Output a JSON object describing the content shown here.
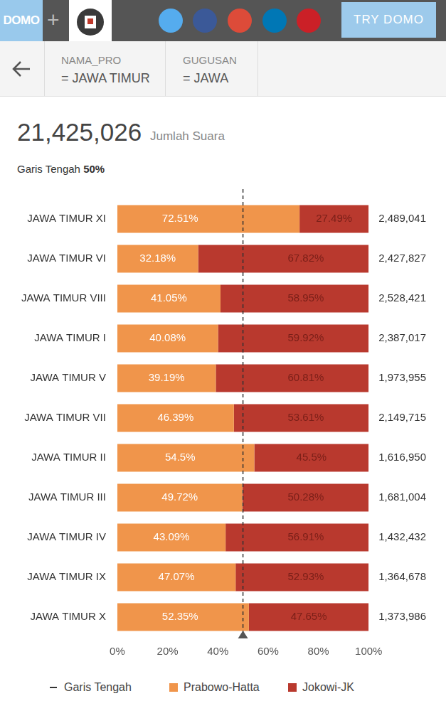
{
  "header": {
    "brand": "DOMO",
    "plus": "+",
    "button": "TRY DOMO"
  },
  "filters": [
    {
      "name": "NAMA_PRO",
      "value": "= JAWA TIMUR"
    },
    {
      "name": "GUGUSAN",
      "value": "= JAWA"
    }
  ],
  "total": {
    "value": 21425026,
    "label": "21,425,026",
    "caption": "Jumlah Suara"
  },
  "chart_data": {
    "type": "bar",
    "orientation": "horizontal",
    "stacked": true,
    "data_labels": true,
    "grid": false,
    "legend": "bottom",
    "categories": [
      "JAWA TIMUR XI",
      "JAWA TIMUR VI",
      "JAWA TIMUR VIII",
      "JAWA TIMUR I",
      "JAWA TIMUR V",
      "JAWA TIMUR VII",
      "JAWA TIMUR II",
      "JAWA TIMUR III",
      "JAWA TIMUR IV",
      "JAWA TIMUR IX",
      "JAWA TIMUR X"
    ],
    "series": [
      {
        "name": "Prabowo-Hatta",
        "color": "#f0954b",
        "values": [
          72.51,
          32.18,
          41.05,
          40.08,
          39.19,
          46.39,
          54.5,
          49.72,
          43.09,
          47.07,
          52.35
        ],
        "value_labels": [
          "72.51%",
          "32.18%",
          "41.05%",
          "40.08%",
          "39.19%",
          "46.39%",
          "54.5%",
          "49.72%",
          "43.09%",
          "47.07%",
          "52.35%"
        ]
      },
      {
        "name": "Jokowi-JK",
        "color": "#b9392e",
        "values": [
          27.49,
          67.82,
          58.95,
          59.92,
          60.81,
          53.61,
          45.5,
          50.28,
          56.91,
          52.93,
          47.65
        ],
        "value_labels": [
          "27.49%",
          "67.82%",
          "58.95%",
          "59.92%",
          "60.81%",
          "53.61%",
          "45.5%",
          "50.28%",
          "56.91%",
          "52.93%",
          "47.65%"
        ]
      }
    ],
    "totals": {
      "values": [
        2489041,
        2427827,
        2528421,
        2387017,
        1973955,
        2149715,
        1616950,
        1681004,
        1432432,
        1364678,
        1373986
      ],
      "value_labels": [
        "2,489,041",
        "2,427,827",
        "2,528,421",
        "2,387,017",
        "1,973,955",
        "2,149,715",
        "1,616,950",
        "1,681,004",
        "1,432,432",
        "1,364,678",
        "1,373,986"
      ]
    },
    "midline": {
      "label": "Garis Tengah",
      "value": 50,
      "value_label": "50%"
    },
    "xlim": [
      0,
      100
    ],
    "xticks": [
      {
        "value": 0,
        "label": "0%"
      },
      {
        "value": 20,
        "label": "20%"
      },
      {
        "value": 40,
        "label": "40%"
      },
      {
        "value": 60,
        "label": "60%"
      },
      {
        "value": 80,
        "label": "80%"
      },
      {
        "value": 100,
        "label": "100%"
      }
    ]
  }
}
